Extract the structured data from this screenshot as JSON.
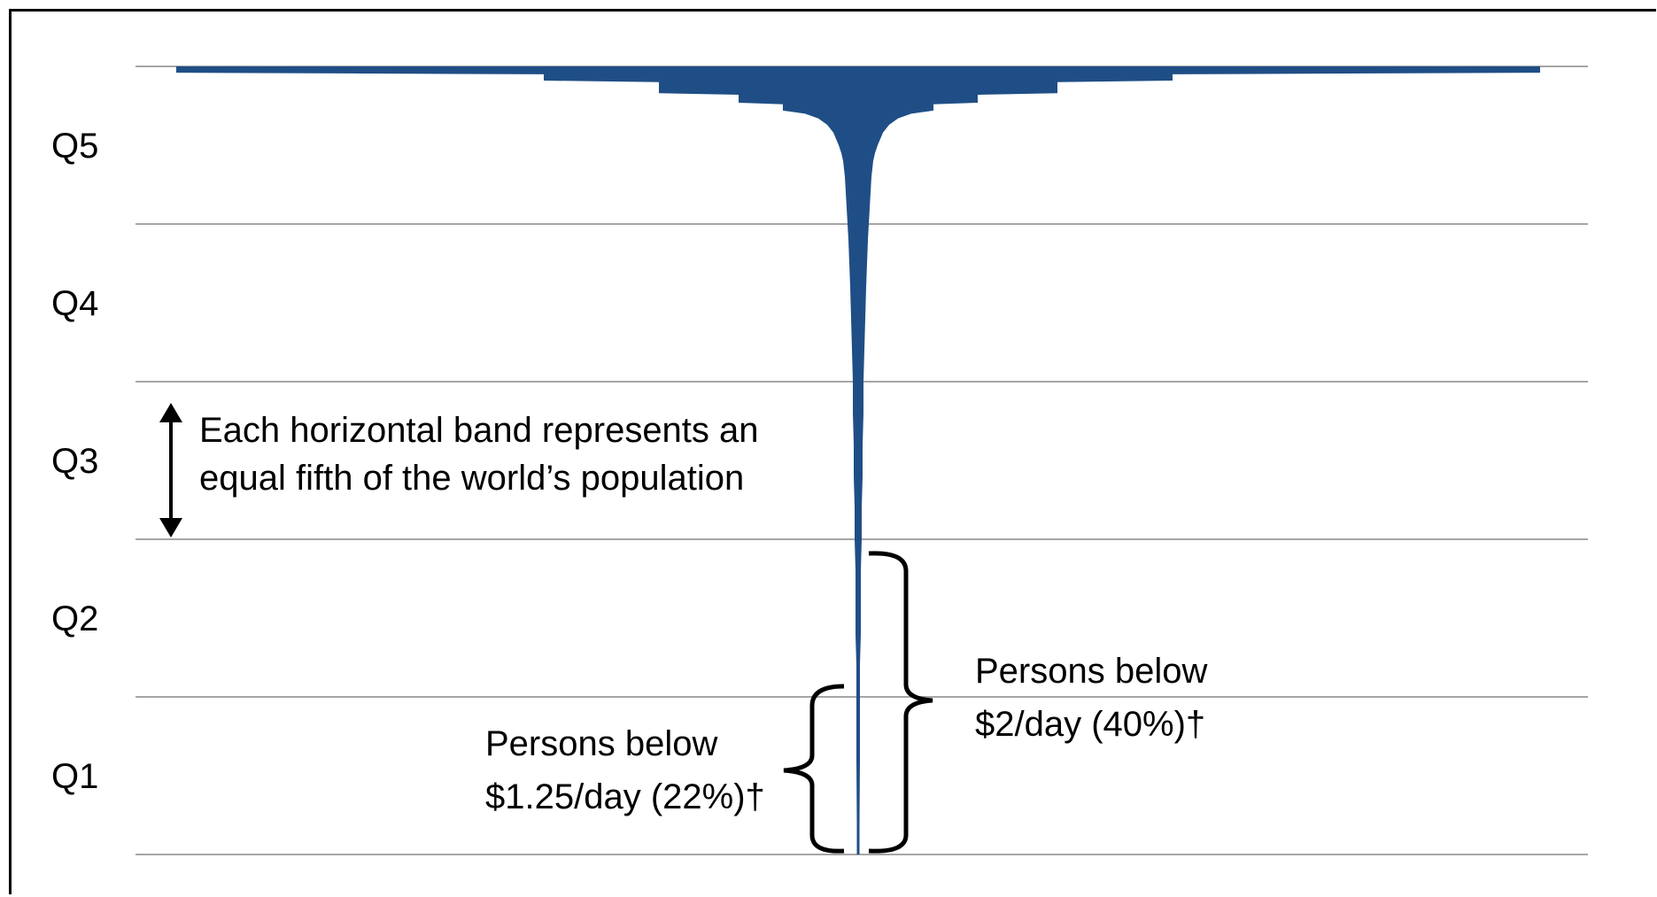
{
  "chart_data": {
    "type": "area",
    "quintile_labels": [
      "Q5",
      "Q4",
      "Q3",
      "Q2",
      "Q1"
    ],
    "distribution_half_width": [
      [
        0.0,
        770
      ],
      [
        0.04,
        770
      ],
      [
        0.05,
        355
      ],
      [
        0.09,
        355
      ],
      [
        0.1,
        225
      ],
      [
        0.17,
        225
      ],
      [
        0.18,
        135
      ],
      [
        0.23,
        135
      ],
      [
        0.24,
        85
      ],
      [
        0.28,
        85
      ],
      [
        0.3,
        60
      ],
      [
        0.33,
        45
      ],
      [
        0.37,
        35
      ],
      [
        0.42,
        28
      ],
      [
        0.46,
        25
      ],
      [
        0.5,
        22
      ],
      [
        0.55,
        19
      ],
      [
        0.6,
        17
      ],
      [
        0.7,
        15
      ],
      [
        0.8,
        14
      ],
      [
        0.9,
        13
      ],
      [
        1.0,
        12
      ],
      [
        1.1,
        11
      ],
      [
        1.25,
        10
      ],
      [
        1.4,
        9
      ],
      [
        1.6,
        8
      ],
      [
        1.8,
        7
      ],
      [
        2.0,
        6
      ],
      [
        2.2,
        6
      ],
      [
        2.4,
        5
      ],
      [
        2.6,
        5
      ],
      [
        2.8,
        4
      ],
      [
        3.0,
        4
      ],
      [
        3.2,
        3
      ],
      [
        3.4,
        3
      ],
      [
        3.6,
        3
      ],
      [
        3.8,
        2
      ],
      [
        4.0,
        2
      ],
      [
        4.4,
        2
      ],
      [
        4.8,
        1.5
      ],
      [
        5.0,
        1.5
      ]
    ],
    "annotations": {
      "band_note": [
        "Each horizontal band represents an",
        "equal fifth of the world’s population"
      ],
      "below_2": [
        "Persons below",
        "$2/day (40%)†"
      ],
      "below_125": [
        "Persons below",
        "$1.25/day (22%)†"
      ]
    },
    "colors": {
      "fill": "#1f4e86",
      "gridline": "#a6a6a6"
    }
  }
}
